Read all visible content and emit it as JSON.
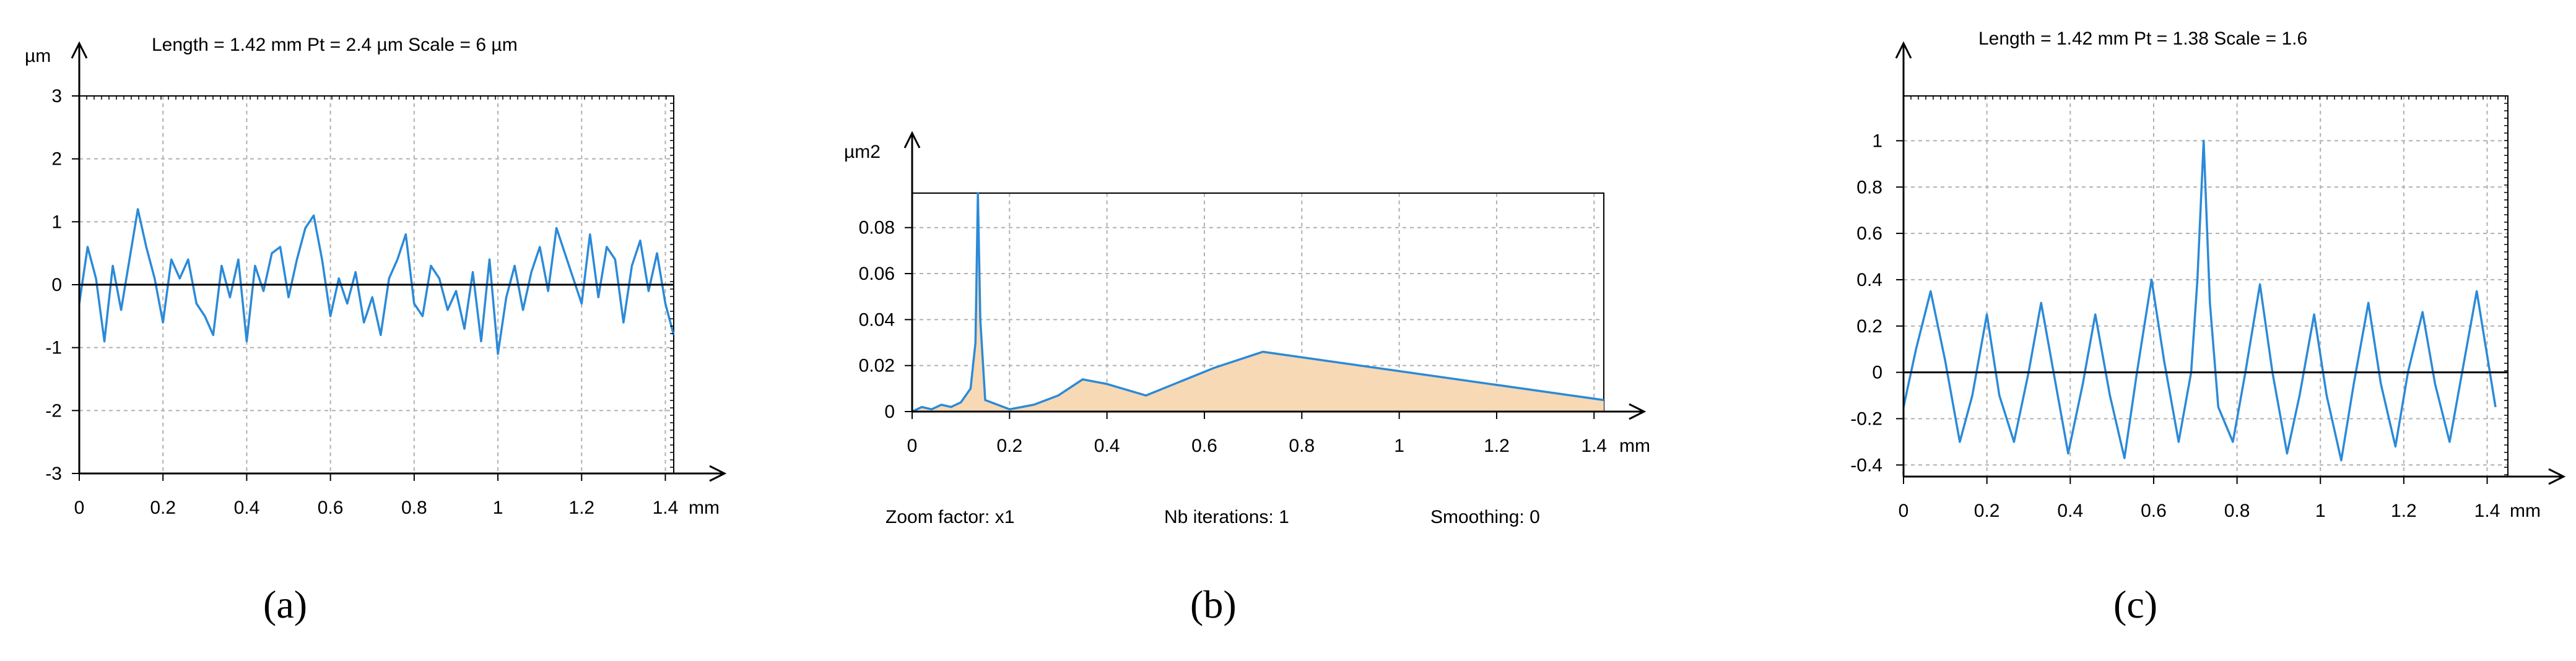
{
  "panels": [
    {
      "label": "(a)",
      "header": "Length = 1.42 mm  Pt = 2.4 µm  Scale = 6 µm",
      "y_unit": "µm",
      "x_unit": "mm",
      "footer": []
    },
    {
      "label": "(b)",
      "header": "",
      "y_unit": "µm2",
      "x_unit": "mm",
      "footer": [
        "Zoom factor: x1",
        "Nb iterations: 1",
        "Smoothing: 0"
      ]
    },
    {
      "label": "(c)",
      "header": "Length = 1.42 mm  Pt = 1.38   Scale = 1.6",
      "y_unit": "",
      "x_unit": "mm",
      "footer": []
    }
  ],
  "colors": {
    "series": "#2b8ad8",
    "fill": "#f7d9b5",
    "grid": "#b0b0b0",
    "axis": "#000000"
  },
  "chart_data": [
    {
      "type": "line",
      "title": "Length = 1.42 mm  Pt = 2.4 µm  Scale = 6 µm",
      "ylabel": "µm",
      "xlabel": "mm",
      "xlim": [
        0,
        1.42
      ],
      "ylim": [
        -3,
        3
      ],
      "xticks": [
        0,
        0.2,
        0.4,
        0.6,
        0.8,
        1,
        1.2,
        1.4
      ],
      "xtick_labels": [
        "0",
        "0.2",
        "0.4",
        "0.6",
        "0.8",
        "1",
        "1.2",
        "1.4"
      ],
      "yticks": [
        3,
        2,
        1,
        0,
        -1,
        -2,
        -3
      ],
      "ytick_labels": [
        "3",
        "2",
        "1",
        "0",
        "-1",
        "-2",
        "-3"
      ],
      "grid": true,
      "series": [
        {
          "x": [
            0,
            0.02,
            0.04,
            0.06,
            0.08,
            0.1,
            0.12,
            0.14,
            0.16,
            0.18,
            0.2,
            0.22,
            0.24,
            0.26,
            0.28,
            0.3,
            0.32,
            0.34,
            0.36,
            0.38,
            0.4,
            0.42,
            0.44,
            0.46,
            0.48,
            0.5,
            0.52,
            0.54,
            0.56,
            0.58,
            0.6,
            0.62,
            0.64,
            0.66,
            0.68,
            0.7,
            0.72,
            0.74,
            0.76,
            0.78,
            0.8,
            0.82,
            0.84,
            0.86,
            0.88,
            0.9,
            0.92,
            0.94,
            0.96,
            0.98,
            1.0,
            1.02,
            1.04,
            1.06,
            1.08,
            1.1,
            1.12,
            1.14,
            1.16,
            1.18,
            1.2,
            1.22,
            1.24,
            1.26,
            1.28,
            1.3,
            1.32,
            1.34,
            1.36,
            1.38,
            1.4,
            1.42
          ],
          "y": [
            -0.3,
            0.6,
            0.1,
            -0.9,
            0.3,
            -0.4,
            0.4,
            1.2,
            0.6,
            0.1,
            -0.6,
            0.4,
            0.1,
            0.4,
            -0.3,
            -0.5,
            -0.8,
            0.3,
            -0.2,
            0.4,
            -0.9,
            0.3,
            -0.1,
            0.5,
            0.6,
            -0.2,
            0.4,
            0.9,
            1.1,
            0.4,
            -0.5,
            0.1,
            -0.3,
            0.2,
            -0.6,
            -0.2,
            -0.8,
            0.1,
            0.4,
            0.8,
            -0.3,
            -0.5,
            0.3,
            0.1,
            -0.4,
            -0.1,
            -0.7,
            0.2,
            -0.9,
            0.4,
            -1.1,
            -0.2,
            0.3,
            -0.4,
            0.2,
            0.6,
            -0.1,
            0.9,
            0.5,
            0.1,
            -0.3,
            0.8,
            -0.2,
            0.6,
            0.4,
            -0.6,
            0.3,
            0.7,
            -0.1,
            0.5,
            -0.3,
            -0.8
          ]
        }
      ]
    },
    {
      "type": "area",
      "title": "",
      "ylabel": "µm2",
      "xlabel": "mm",
      "xlim": [
        0,
        1.42
      ],
      "ylim": [
        0,
        0.095
      ],
      "xticks": [
        0,
        0.2,
        0.4,
        0.6,
        0.8,
        1,
        1.2,
        1.4
      ],
      "xtick_labels": [
        "0",
        "0.2",
        "0.4",
        "0.6",
        "0.8",
        "1",
        "1.2",
        "1.4"
      ],
      "yticks": [
        0,
        0.02,
        0.04,
        0.06,
        0.08
      ],
      "ytick_labels": [
        "0",
        "0.02",
        "0.04",
        "0.06",
        "0.08"
      ],
      "grid": true,
      "series": [
        {
          "x": [
            0,
            0.02,
            0.04,
            0.06,
            0.08,
            0.1,
            0.12,
            0.13,
            0.135,
            0.14,
            0.15,
            0.2,
            0.25,
            0.3,
            0.35,
            0.4,
            0.48,
            0.55,
            0.62,
            0.72,
            1.42
          ],
          "y": [
            0.0,
            0.002,
            0.001,
            0.003,
            0.002,
            0.004,
            0.01,
            0.03,
            0.095,
            0.04,
            0.005,
            0.001,
            0.003,
            0.007,
            0.014,
            0.012,
            0.007,
            0.013,
            0.019,
            0.026,
            0.005
          ]
        }
      ]
    },
    {
      "type": "line",
      "title": "Length = 1.42 mm  Pt = 1.38   Scale = 1.6",
      "ylabel": "",
      "xlabel": "mm",
      "xlim": [
        0,
        1.42
      ],
      "ylim": [
        -0.45,
        1.1
      ],
      "xticks": [
        0,
        0.2,
        0.4,
        0.6,
        0.8,
        1,
        1.2,
        1.4
      ],
      "xtick_labels": [
        "0",
        "0.2",
        "0.4",
        "0.6",
        "0.8",
        "1",
        "1.2",
        "1.4"
      ],
      "yticks": [
        1,
        0.8,
        0.6,
        0.4,
        0.2,
        0,
        -0.2,
        -0.4
      ],
      "ytick_labels": [
        "1",
        "0.8",
        "0.6",
        "0.4",
        "0.2",
        "0",
        "-0.2",
        "-0.4"
      ],
      "grid": true,
      "series": [
        {
          "x": [
            0,
            0.03,
            0.065,
            0.1,
            0.135,
            0.165,
            0.2,
            0.23,
            0.265,
            0.3,
            0.33,
            0.365,
            0.395,
            0.43,
            0.46,
            0.495,
            0.53,
            0.56,
            0.595,
            0.625,
            0.66,
            0.69,
            0.705,
            0.72,
            0.735,
            0.755,
            0.79,
            0.82,
            0.855,
            0.885,
            0.92,
            0.95,
            0.985,
            1.015,
            1.05,
            1.08,
            1.115,
            1.145,
            1.18,
            1.21,
            1.245,
            1.275,
            1.31,
            1.34,
            1.375,
            1.42
          ],
          "y": [
            -0.15,
            0.1,
            0.35,
            0.05,
            -0.3,
            -0.1,
            0.25,
            -0.1,
            -0.3,
            0.0,
            0.3,
            -0.05,
            -0.35,
            -0.05,
            0.25,
            -0.1,
            -0.37,
            0.0,
            0.4,
            0.05,
            -0.3,
            0.0,
            0.4,
            1.0,
            0.3,
            -0.15,
            -0.3,
            0.0,
            0.38,
            0.0,
            -0.35,
            -0.1,
            0.25,
            -0.1,
            -0.38,
            -0.05,
            0.3,
            -0.05,
            -0.32,
            0.0,
            0.26,
            -0.05,
            -0.3,
            0.0,
            0.35,
            -0.15
          ]
        }
      ]
    }
  ]
}
